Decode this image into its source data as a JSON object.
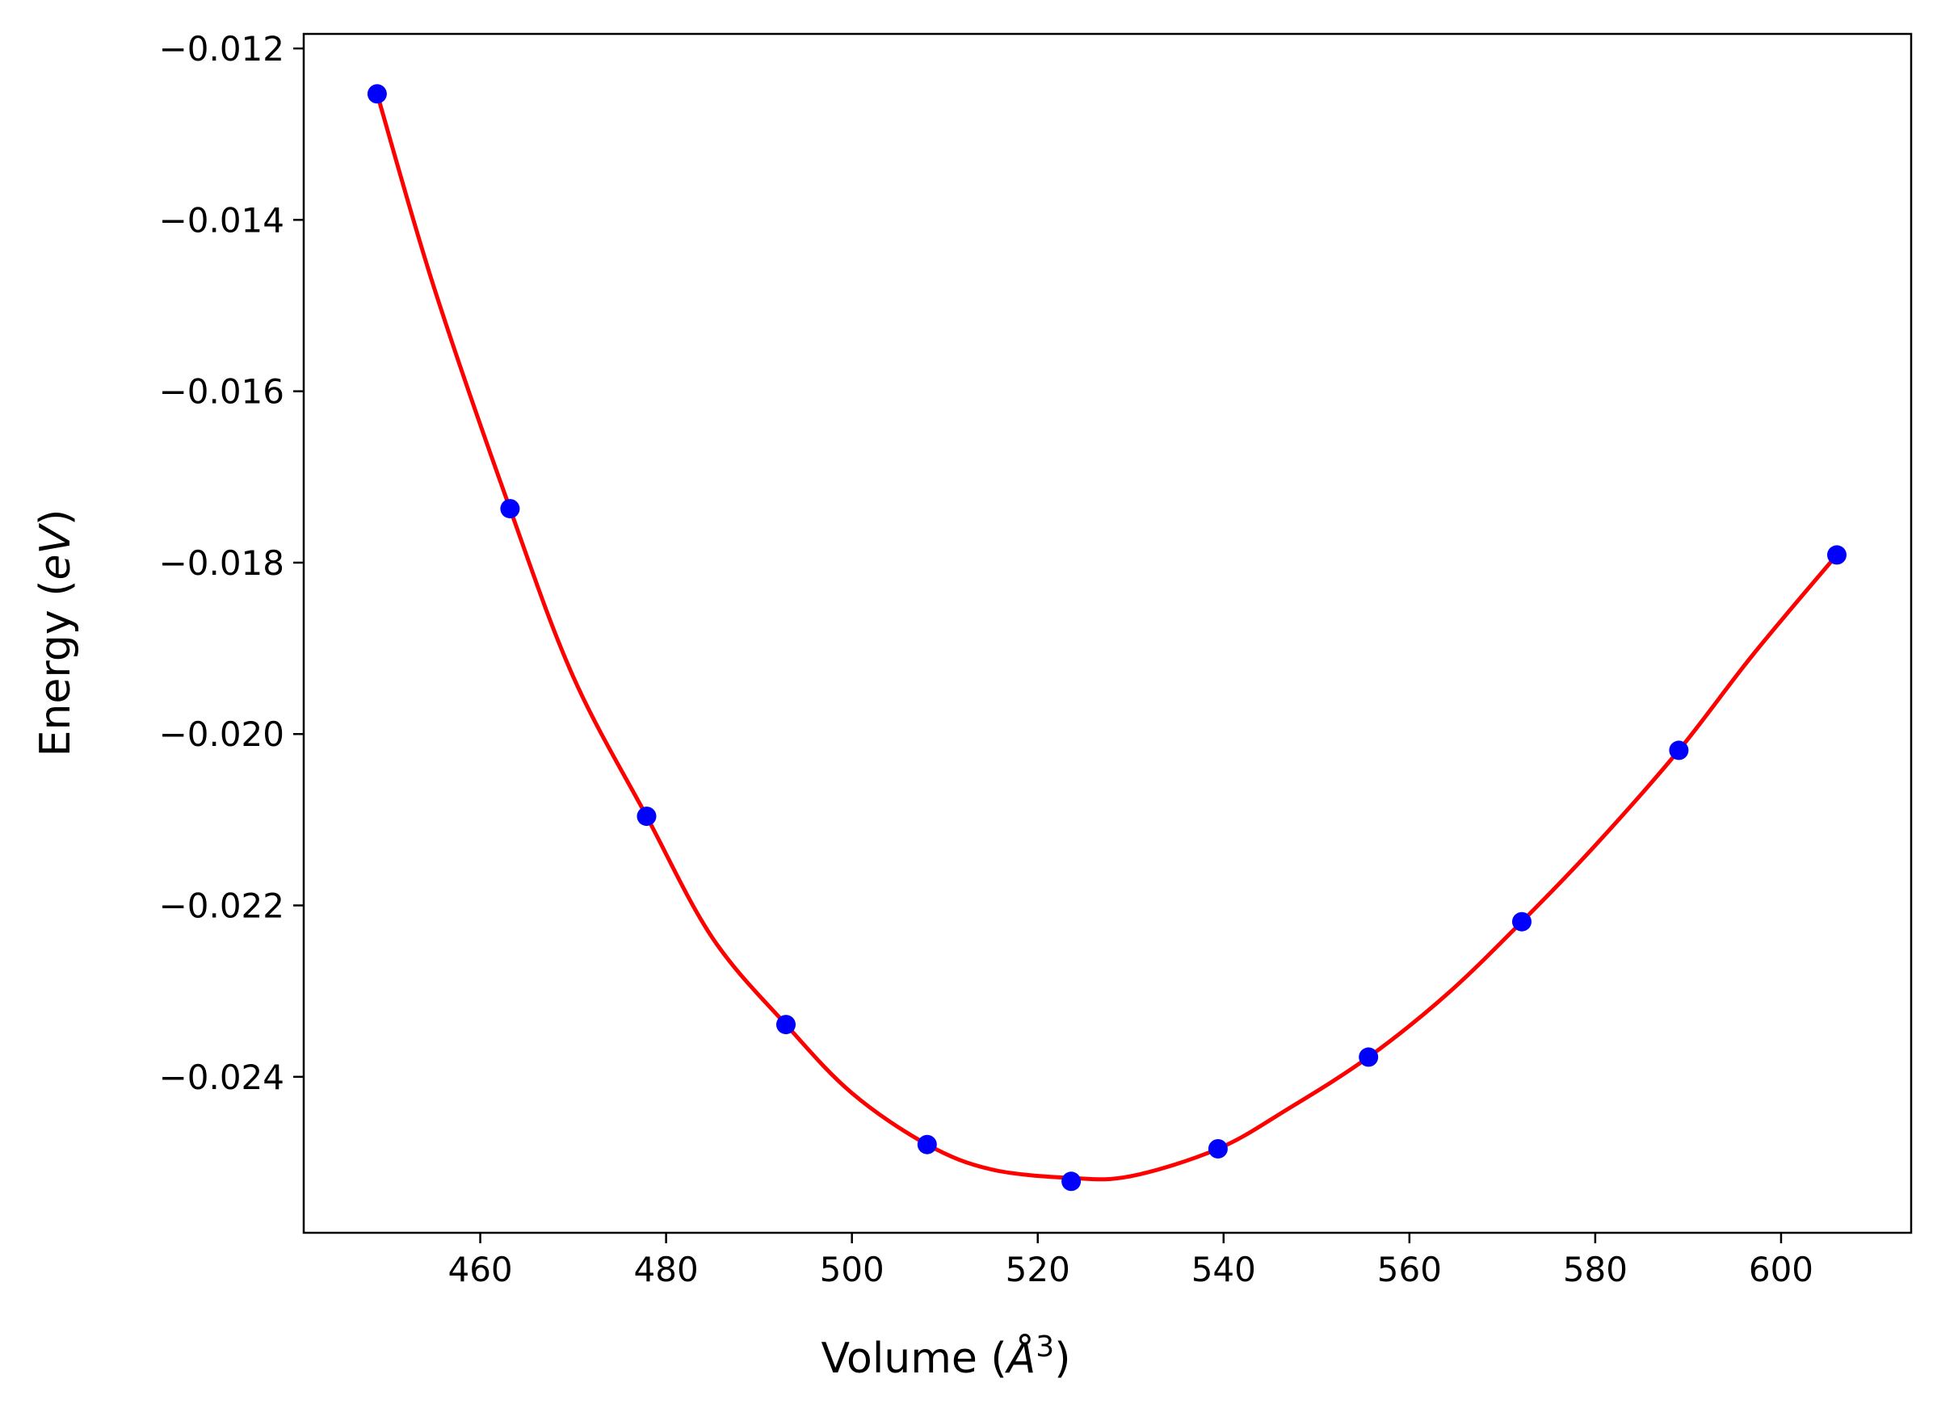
{
  "chart_data": {
    "type": "scatter",
    "xlabel": "Volume (",
    "xlabel_unit": "Å",
    "xlabel_exp": "3",
    "xlabel_close": ")",
    "ylabel": "Energy (",
    "ylabel_unit": "eV",
    "ylabel_close": ")",
    "xlim": [
      441,
      614
    ],
    "ylim": [
      -0.02582,
      -0.01183
    ],
    "x_ticks": [
      460,
      480,
      500,
      520,
      540,
      560,
      580,
      600
    ],
    "x_tick_labels": [
      "460",
      "480",
      "500",
      "520",
      "540",
      "560",
      "580",
      "600"
    ],
    "y_ticks": [
      -0.012,
      -0.014,
      -0.016,
      -0.018,
      -0.02,
      -0.022,
      -0.024
    ],
    "y_tick_labels": [
      "−0.012",
      "−0.014",
      "−0.016",
      "−0.018",
      "−0.020",
      "−0.022",
      "−0.024"
    ],
    "grid": false,
    "legend": "none",
    "series": [
      {
        "kind": "points",
        "color": "#0000ff",
        "x": [
          448.9,
          463.2,
          477.9,
          492.9,
          508.1,
          523.6,
          539.4,
          555.6,
          572.1,
          589.0,
          606.0
        ],
        "y": [
          -0.01253,
          -0.01737,
          -0.02096,
          -0.02339,
          -0.02479,
          -0.02522,
          -0.02484,
          -0.02377,
          -0.02219,
          -0.02019,
          -0.01791
        ]
      },
      {
        "kind": "fit-curve",
        "color": "#ff0000",
        "x": [
          448.9,
          455,
          463.2,
          470,
          477.9,
          485,
          492.9,
          500,
          508.1,
          515,
          523.6,
          530,
          539.4,
          547,
          555.6,
          564,
          572.1,
          580,
          589.0,
          597,
          606.0
        ],
        "y": [
          -0.01253,
          -0.01478,
          -0.01737,
          -0.01933,
          -0.02096,
          -0.02238,
          -0.02339,
          -0.02419,
          -0.02479,
          -0.02508,
          -0.02518,
          -0.02516,
          -0.02484,
          -0.02437,
          -0.02377,
          -0.02304,
          -0.02219,
          -0.0213,
          -0.02019,
          -0.01907,
          -0.01791
        ]
      }
    ]
  }
}
